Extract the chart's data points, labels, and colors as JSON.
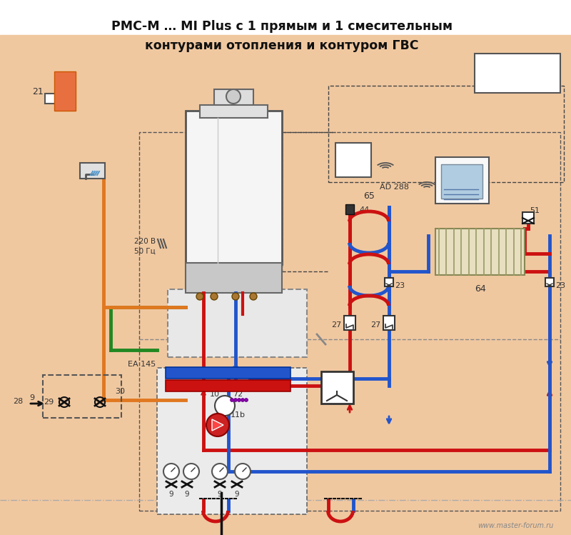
{
  "title_line1": "РМС-М … MI Plus с 1 прямым и 1 смесительным",
  "title_line2": "контурами отопления и контуром ГВС",
  "bg_color": "#ffffff",
  "floor_color": "#f0c8a0",
  "pipe_red": "#cc1111",
  "pipe_blue": "#2255cc",
  "pipe_green": "#228822",
  "pipe_orange": "#e07820",
  "pipe_black": "#111111",
  "watermark": "www.master-forum.ru"
}
